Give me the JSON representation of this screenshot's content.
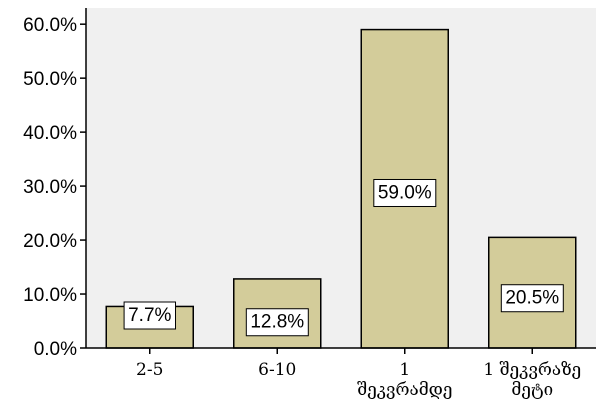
{
  "chart_data": {
    "type": "bar",
    "categories": [
      [
        "2-5"
      ],
      [
        "6-10"
      ],
      [
        "1",
        "შეკვრამდე"
      ],
      [
        "1  შეკვრაზე",
        "მეტი"
      ]
    ],
    "values": [
      7.7,
      12.8,
      59.0,
      20.5
    ],
    "data_labels": [
      "7.7%",
      "12.8%",
      "59.0%",
      "20.5%"
    ],
    "yticks": [
      "0.0%",
      "10.0%",
      "20.0%",
      "30.0%",
      "40.0%",
      "50.0%",
      "60.0%"
    ],
    "ylim": [
      0,
      63
    ],
    "title": "",
    "xlabel": "",
    "ylabel": "",
    "grid": false,
    "legend": "none",
    "colors": {
      "bar_fill": "#d3cc9a",
      "bar_stroke": "#000000",
      "plot_background": "#f0f0f0",
      "label_box": "#ffffff"
    }
  }
}
